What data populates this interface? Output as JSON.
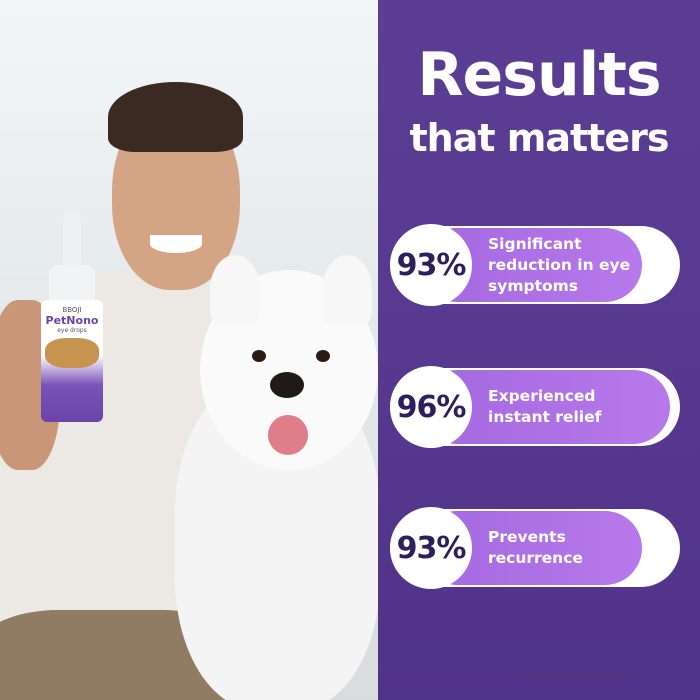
{
  "heading": {
    "line1": "Results",
    "line2": "that matters"
  },
  "stats": [
    {
      "value": "93%",
      "label": "Significant reduction in eye symptoms"
    },
    {
      "value": "96%",
      "label": "Experienced instant relief"
    },
    {
      "value": "93%",
      "label": "Prevents recurrence"
    }
  ],
  "product": {
    "brand": "BBOJI",
    "name": "PetNono",
    "subtitle": "eye drops"
  },
  "colors": {
    "panel": "#57398f",
    "bar": "#b077e6",
    "number": "#2c1f5e"
  }
}
